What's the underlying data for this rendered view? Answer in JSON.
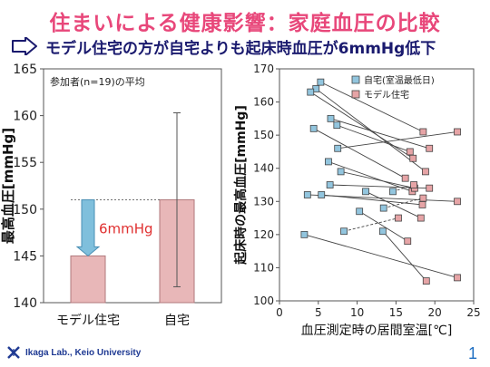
{
  "slide": {
    "title": "住まいによる健康影響：家庭血圧の比較",
    "subtitle": "モデル住宅の方が自宅よりも起床時血圧が6mmHg低下",
    "footer": "Ikaga Lab., Keio University",
    "page_number": "1"
  },
  "colors": {
    "title": "#e8477a",
    "subtitle": "#1a1a6e",
    "bar_fill": "#e8b7b8",
    "blue_marker": "#92c5de",
    "pink_marker": "#e6a4a6",
    "arrow_fill": "#7fbfdc",
    "annotation": "#e03030"
  },
  "chart_data": [
    {
      "type": "bar",
      "categories": [
        "モデル住宅",
        "自宅"
      ],
      "values": [
        145,
        151
      ],
      "error_bars": [
        null,
        {
          "low": 141.7,
          "high": 160.3
        }
      ],
      "ylabel": "最高血圧[mmHg]",
      "ylim": [
        140,
        165
      ],
      "yticks": [
        140,
        145,
        150,
        155,
        160,
        165
      ],
      "inner_label": "参加者(n=19)の平均",
      "annotation": "6mmHg"
    },
    {
      "type": "scatter",
      "xlabel": "血圧測定時の居間室温[℃]",
      "ylabel": "起床時の最高血圧[mmHg]",
      "xlim": [
        0,
        25
      ],
      "ylim": [
        100,
        170
      ],
      "xticks": [
        0,
        5,
        10,
        15,
        20,
        25
      ],
      "yticks": [
        100,
        110,
        120,
        130,
        140,
        150,
        160,
        170
      ],
      "legend_position": "top-left",
      "series": [
        {
          "name": "自宅(室温最低日)",
          "marker": "blue"
        },
        {
          "name": "モデル住宅",
          "marker": "pink"
        }
      ],
      "pairs": [
        {
          "home": [
            5.3,
            166
          ],
          "model": [
            18.5,
            151
          ]
        },
        {
          "home": [
            4.7,
            164
          ],
          "model": [
            18.8,
            139
          ]
        },
        {
          "home": [
            4.0,
            163
          ],
          "model": [
            17.2,
            143
          ]
        },
        {
          "home": [
            6.6,
            155
          ],
          "model": [
            19.3,
            146
          ]
        },
        {
          "home": [
            4.4,
            152
          ],
          "model": [
            16.2,
            137
          ]
        },
        {
          "home": [
            7.4,
            153
          ],
          "model": [
            16.8,
            145
          ]
        },
        {
          "home": [
            7.5,
            146
          ],
          "model": [
            22.9,
            151
          ]
        },
        {
          "home": [
            6.3,
            142
          ],
          "model": [
            17.1,
            133
          ]
        },
        {
          "home": [
            7.9,
            139
          ],
          "model": [
            17.4,
            134
          ]
        },
        {
          "home": [
            6.5,
            135
          ],
          "model": [
            19.3,
            134
          ]
        },
        {
          "home": [
            5.4,
            132
          ],
          "model": [
            18.4,
            129
          ]
        },
        {
          "home": [
            3.6,
            132
          ],
          "model": [
            22.9,
            130
          ]
        },
        {
          "home": [
            11.1,
            133
          ],
          "model": [
            18.2,
            125
          ]
        },
        {
          "home": [
            10.3,
            127
          ],
          "model": [
            16.5,
            118
          ]
        },
        {
          "home": [
            13.3,
            121
          ],
          "model": [
            18.9,
            106
          ]
        },
        {
          "home": [
            3.2,
            120
          ],
          "model": [
            22.9,
            107
          ]
        },
        {
          "home": [
            8.3,
            121
          ],
          "model": [
            15.3,
            125
          ],
          "dashed": true
        },
        {
          "home": [
            13.4,
            128
          ],
          "model": [
            18.5,
            131
          ],
          "dashed": true
        },
        {
          "home": [
            14.6,
            133
          ],
          "model": [
            17.3,
            135
          ],
          "dashed": true
        }
      ]
    }
  ]
}
